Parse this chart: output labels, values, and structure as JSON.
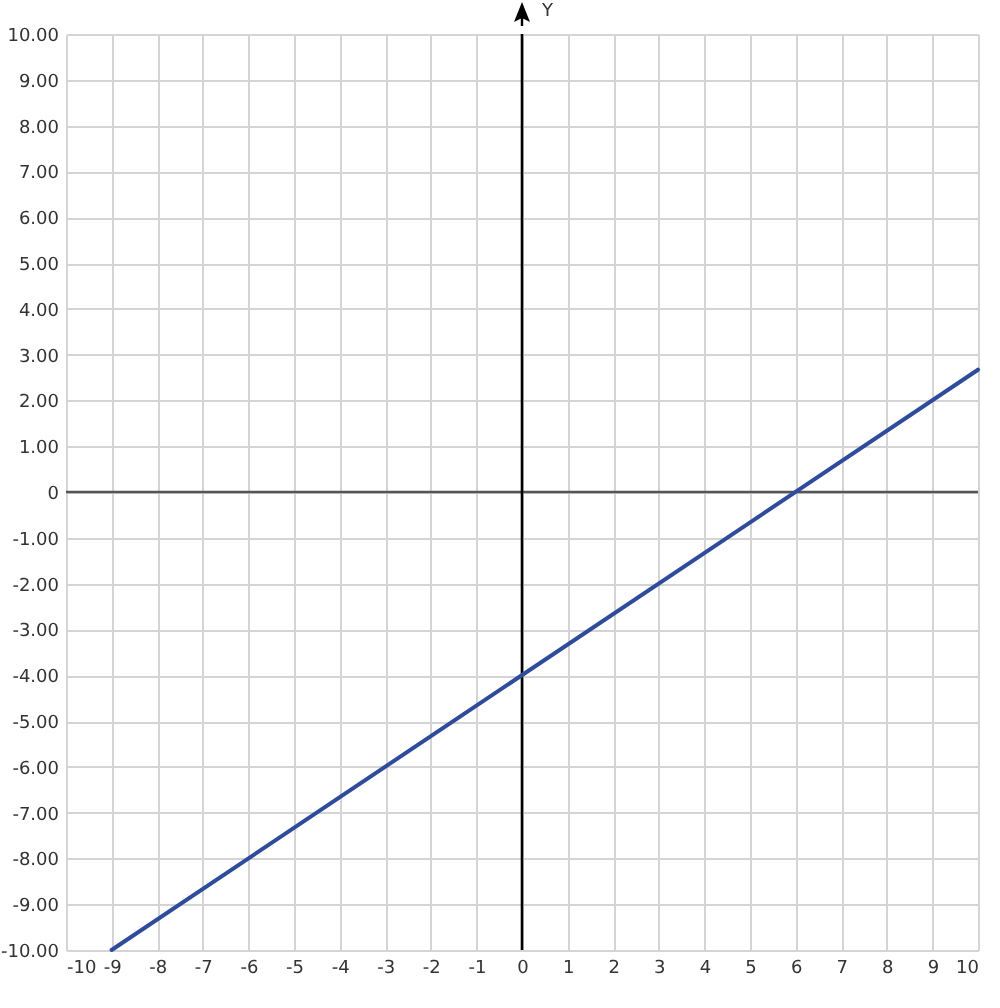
{
  "chart_data": {
    "type": "line",
    "ylabel": "Y",
    "xlim": [
      -10,
      10
    ],
    "ylim": [
      -10,
      10
    ],
    "xticks": [
      -10,
      -9,
      -8,
      -7,
      -6,
      -5,
      -4,
      -3,
      -2,
      -1,
      0,
      1,
      2,
      3,
      4,
      5,
      6,
      7,
      8,
      9,
      10
    ],
    "yticks": [
      {
        "value": -10,
        "label": "-10.00"
      },
      {
        "value": -9,
        "label": "-9.00"
      },
      {
        "value": -8,
        "label": "-8.00"
      },
      {
        "value": -7,
        "label": "-7.00"
      },
      {
        "value": -6,
        "label": "-6.00"
      },
      {
        "value": -5,
        "label": "-5.00"
      },
      {
        "value": -4,
        "label": "-4.00"
      },
      {
        "value": -3,
        "label": "-3.00"
      },
      {
        "value": -2,
        "label": "-2.00"
      },
      {
        "value": -1,
        "label": "-1.00"
      },
      0,
      {
        "value": 1,
        "label": "1.00"
      },
      {
        "value": 2,
        "label": "2.00"
      },
      {
        "value": 3,
        "label": "3.00"
      },
      {
        "value": 4,
        "label": "4.00"
      },
      {
        "value": 5,
        "label": "5.00"
      },
      {
        "value": 6,
        "label": "6.00"
      },
      {
        "value": 7,
        "label": "7.00"
      },
      {
        "value": 8,
        "label": "8.00"
      },
      {
        "value": 9,
        "label": "9.00"
      },
      {
        "value": 10,
        "label": "10.00"
      }
    ],
    "grid": true,
    "marker": "none",
    "line_style": "solid",
    "ref_lines": [
      {
        "axis": "y",
        "value": 0,
        "color": "#555555"
      },
      {
        "axis": "x",
        "value": 0,
        "color": "#000000"
      }
    ],
    "series": [
      {
        "color": "#2f4b9c",
        "x": [
          -9,
          10
        ],
        "values": [
          -10,
          2.67
        ]
      }
    ]
  }
}
